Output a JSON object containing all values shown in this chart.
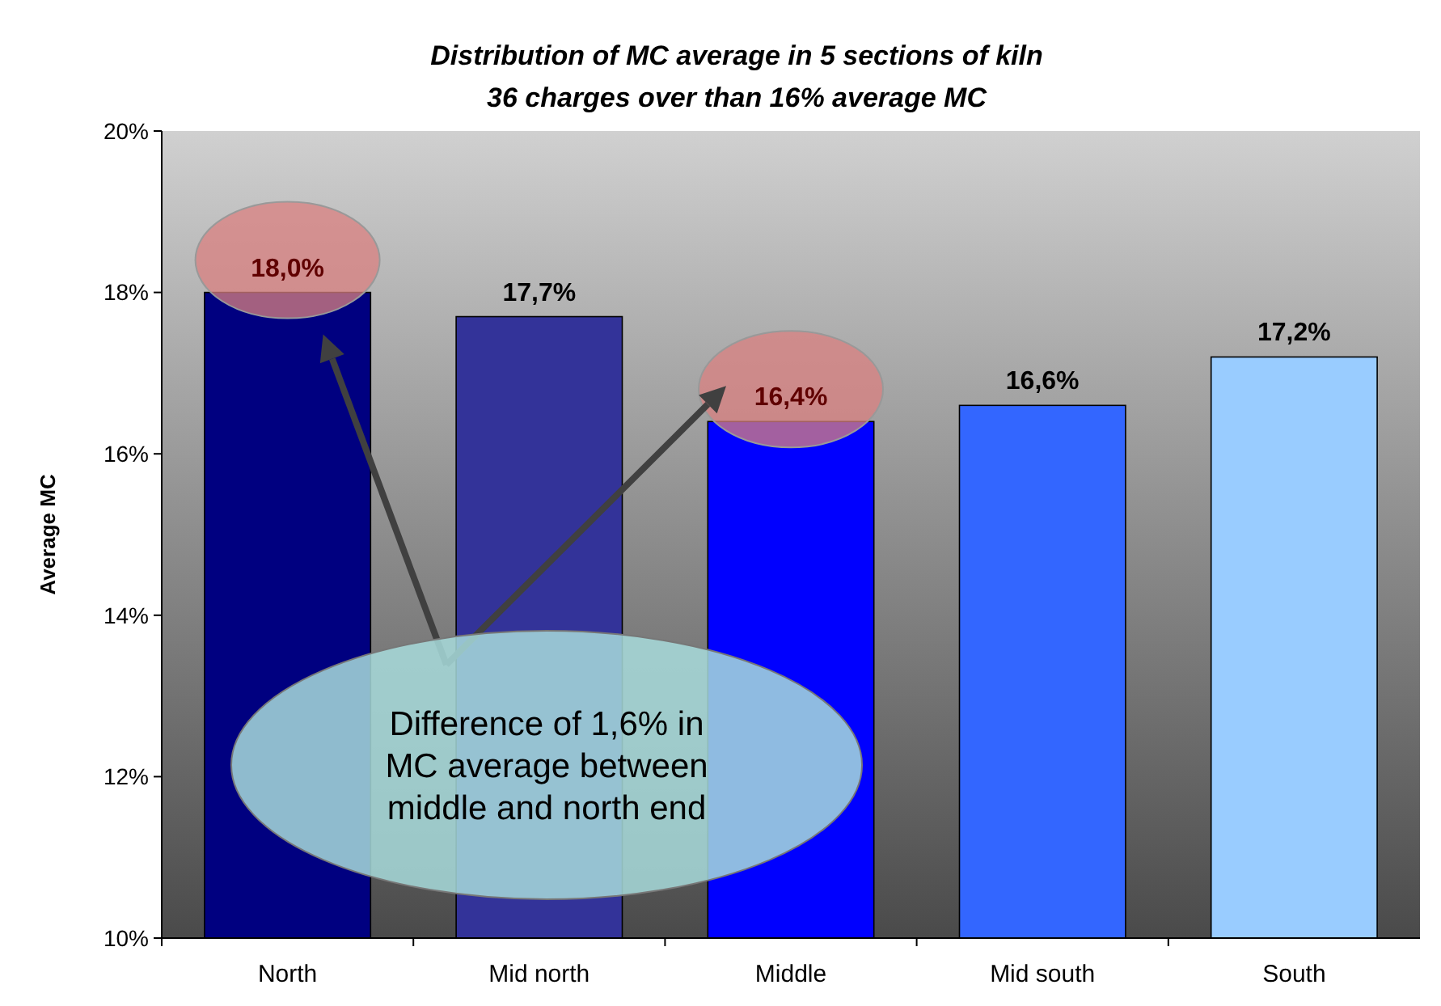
{
  "chart_data": {
    "type": "bar",
    "title": "Distribution of MC average in 5 sections of kiln",
    "subtitle": "36 charges over than 16% average MC",
    "ylabel": "Average MC",
    "categories": [
      "North",
      "Mid north",
      "Middle",
      "Mid south",
      "South"
    ],
    "values": [
      18.0,
      17.7,
      16.4,
      16.6,
      17.2
    ],
    "colors": [
      "#000080",
      "#333399",
      "#0000ff",
      "#3366ff",
      "#99ccff"
    ],
    "value_labels": [
      "18,0%",
      "17,7%",
      "16,4%",
      "16,6%",
      "17,2%"
    ],
    "ylim": [
      10,
      20
    ],
    "yticks": [
      {
        "value": 10,
        "label": "10%"
      },
      {
        "value": 12,
        "label": "12%"
      },
      {
        "value": 14,
        "label": "14%"
      },
      {
        "value": 16,
        "label": "16%"
      },
      {
        "value": 18,
        "label": "18%"
      },
      {
        "value": 20,
        "label": "20%"
      }
    ],
    "grid": false,
    "annotations": [
      "Difference of 1,6% in MC average between middle and north end"
    ]
  }
}
